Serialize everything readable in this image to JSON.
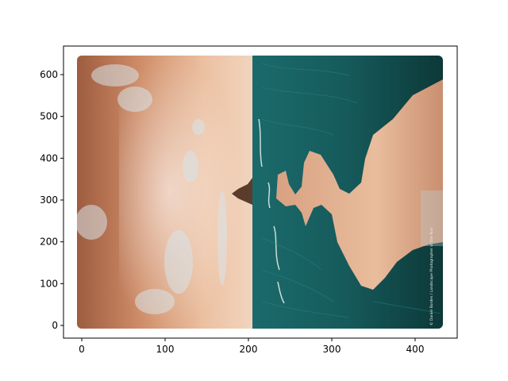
{
  "image_panel": {
    "x_ticks": [
      "0",
      "100",
      "200",
      "300",
      "400"
    ],
    "y_ticks": [
      "0",
      "100",
      "200",
      "300",
      "400",
      "500",
      "600"
    ],
    "x_range": [
      0,
      433
    ],
    "y_range": [
      0,
      646
    ],
    "watermark": "© Daniel Bordes / Landscape Photographer of the Year"
  },
  "colors": {
    "sky_light": "#f1d1b6",
    "sky_dark": "#a06246",
    "sea_dark": "#0e3a3c",
    "sea_teal": "#1f7a7c",
    "sand": "#e3b595",
    "rock": "#5a3c2c"
  }
}
